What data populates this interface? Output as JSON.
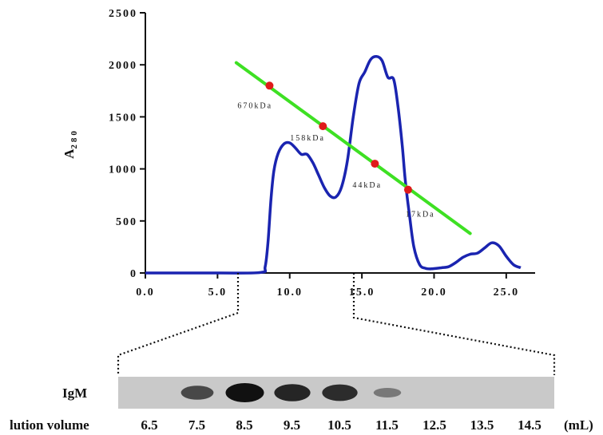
{
  "chart_data": {
    "type": "line",
    "ylabel": "A",
    "ylabel_sub": "280",
    "xlim": [
      0,
      27
    ],
    "ylim": [
      0,
      2500
    ],
    "x_ticks": [
      {
        "value": 0,
        "label": "0.0"
      },
      {
        "value": 5,
        "label": "5.0"
      },
      {
        "value": 10,
        "label": "10.0"
      },
      {
        "value": 15,
        "label": "15.0"
      },
      {
        "value": 20,
        "label": "20.0"
      },
      {
        "value": 25,
        "label": "25.0"
      }
    ],
    "y_ticks": [
      {
        "value": 0,
        "label": "0"
      },
      {
        "value": 500,
        "label": "500"
      },
      {
        "value": 1000,
        "label": "1000"
      },
      {
        "value": 1500,
        "label": "1500"
      },
      {
        "value": 2000,
        "label": "2000"
      },
      {
        "value": 2500,
        "label": "2500"
      }
    ],
    "series": [
      {
        "color": "#1a24b0",
        "x": [
          0,
          5,
          8.0,
          8.3,
          8.5,
          8.7,
          8.9,
          9.2,
          9.6,
          10.0,
          10.4,
          10.8,
          11.2,
          11.6,
          12.0,
          12.4,
          12.8,
          13.2,
          13.6,
          14.0,
          14.4,
          14.8,
          15.2,
          15.6,
          16.0,
          16.4,
          16.8,
          17.2,
          17.5,
          17.8,
          18.0,
          18.3,
          18.6,
          19.0,
          19.4,
          19.8,
          20.5,
          21.0,
          21.5,
          22.0,
          22.5,
          23.0,
          23.5,
          24.0,
          24.5,
          25.0,
          25.5,
          26.0
        ],
        "y": [
          0,
          0,
          5,
          60,
          300,
          700,
          980,
          1150,
          1240,
          1250,
          1200,
          1140,
          1140,
          1060,
          940,
          820,
          740,
          730,
          830,
          1080,
          1500,
          1820,
          1930,
          2050,
          2080,
          2040,
          1880,
          1860,
          1600,
          1220,
          900,
          550,
          250,
          80,
          45,
          40,
          50,
          60,
          100,
          150,
          180,
          190,
          240,
          290,
          260,
          160,
          80,
          50
        ]
      }
    ],
    "calibration_line": {
      "color": "#3ee023",
      "x": [
        6.3,
        22.5
      ],
      "y": [
        2020,
        380
      ]
    },
    "markers": [
      {
        "label": "670kDa",
        "x": 8.6,
        "y": 1800,
        "color": "#e01b1b"
      },
      {
        "label": "158kDa",
        "x": 12.3,
        "y": 1410,
        "color": "#e01b1b"
      },
      {
        "label": "44kDa",
        "x": 15.9,
        "y": 1050,
        "color": "#e01b1b"
      },
      {
        "label": "17kDa",
        "x": 18.2,
        "y": 800,
        "color": "#e01b1b"
      }
    ],
    "gel": {
      "row_label": "IgM",
      "axis_label": "lution volume",
      "unit": "(mL)",
      "lanes": [
        "6.5",
        "7.5",
        "8.5",
        "9.5",
        "10.5",
        "11.5",
        "12.5",
        "13.5",
        "14.5"
      ],
      "band_intensity": [
        0,
        0.6,
        1.0,
        0.85,
        0.8,
        0.25,
        0,
        0,
        0
      ]
    }
  }
}
